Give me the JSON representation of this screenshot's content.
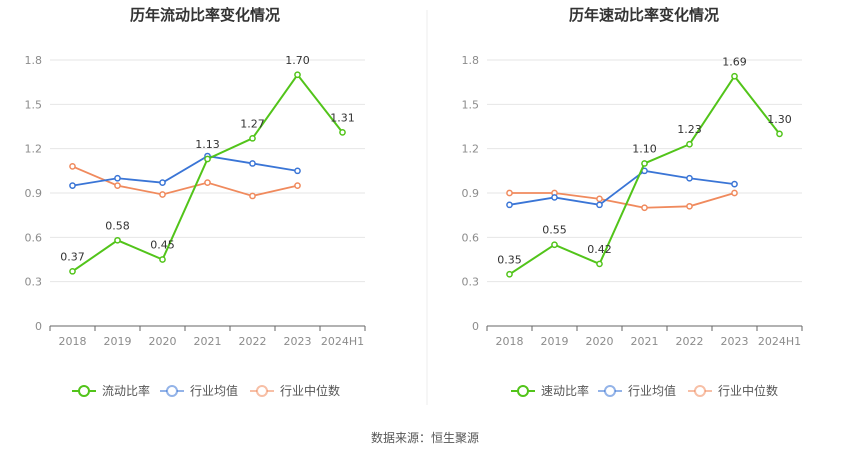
{
  "source_label": "数据来源：恒生聚源",
  "chart_data": [
    {
      "type": "line",
      "title": "历年流动比率变化情况",
      "categories": [
        "2018",
        "2019",
        "2020",
        "2021",
        "2022",
        "2023",
        "2024H1"
      ],
      "ylim": [
        0,
        1.8
      ],
      "yticks": [
        0,
        0.3,
        0.6,
        0.9,
        1.2,
        1.5,
        1.8
      ],
      "ytick_labels": [
        "0",
        "0.3",
        "0.6",
        "0.9",
        "1.2",
        "1.5",
        "1.8"
      ],
      "grid": true,
      "legend_position": "bottom",
      "series": [
        {
          "name": "流动比率",
          "color": "#52c41a",
          "values": [
            0.37,
            0.58,
            0.45,
            1.13,
            1.27,
            1.7,
            1.31
          ],
          "labels": [
            "0.37",
            "0.58",
            "0.45",
            "1.13",
            "1.27",
            "1.70",
            "1.31"
          ]
        },
        {
          "name": "行业均值",
          "color": "#3a75d6",
          "values": [
            0.95,
            1.0,
            0.97,
            1.15,
            1.1,
            1.05,
            null
          ]
        },
        {
          "name": "行业中位数",
          "color": "#f08a5d",
          "values": [
            1.08,
            0.95,
            0.89,
            0.97,
            0.88,
            0.95,
            null
          ]
        }
      ]
    },
    {
      "type": "line",
      "title": "历年速动比率变化情况",
      "categories": [
        "2018",
        "2019",
        "2020",
        "2021",
        "2022",
        "2023",
        "2024H1"
      ],
      "ylim": [
        0,
        1.8
      ],
      "yticks": [
        0,
        0.3,
        0.6,
        0.9,
        1.2,
        1.5,
        1.8
      ],
      "ytick_labels": [
        "0",
        "0.3",
        "0.6",
        "0.9",
        "1.2",
        "1.5",
        "1.8"
      ],
      "grid": true,
      "legend_position": "bottom",
      "series": [
        {
          "name": "速动比率",
          "color": "#52c41a",
          "values": [
            0.35,
            0.55,
            0.42,
            1.1,
            1.23,
            1.69,
            1.3
          ],
          "labels": [
            "0.35",
            "0.55",
            "0.42",
            "1.10",
            "1.23",
            "1.69",
            "1.30"
          ]
        },
        {
          "name": "行业均值",
          "color": "#3a75d6",
          "values": [
            0.82,
            0.87,
            0.82,
            1.05,
            1.0,
            0.96,
            null
          ]
        },
        {
          "name": "行业中位数",
          "color": "#f08a5d",
          "values": [
            0.9,
            0.9,
            0.86,
            0.8,
            0.81,
            0.9,
            null
          ]
        }
      ]
    }
  ]
}
